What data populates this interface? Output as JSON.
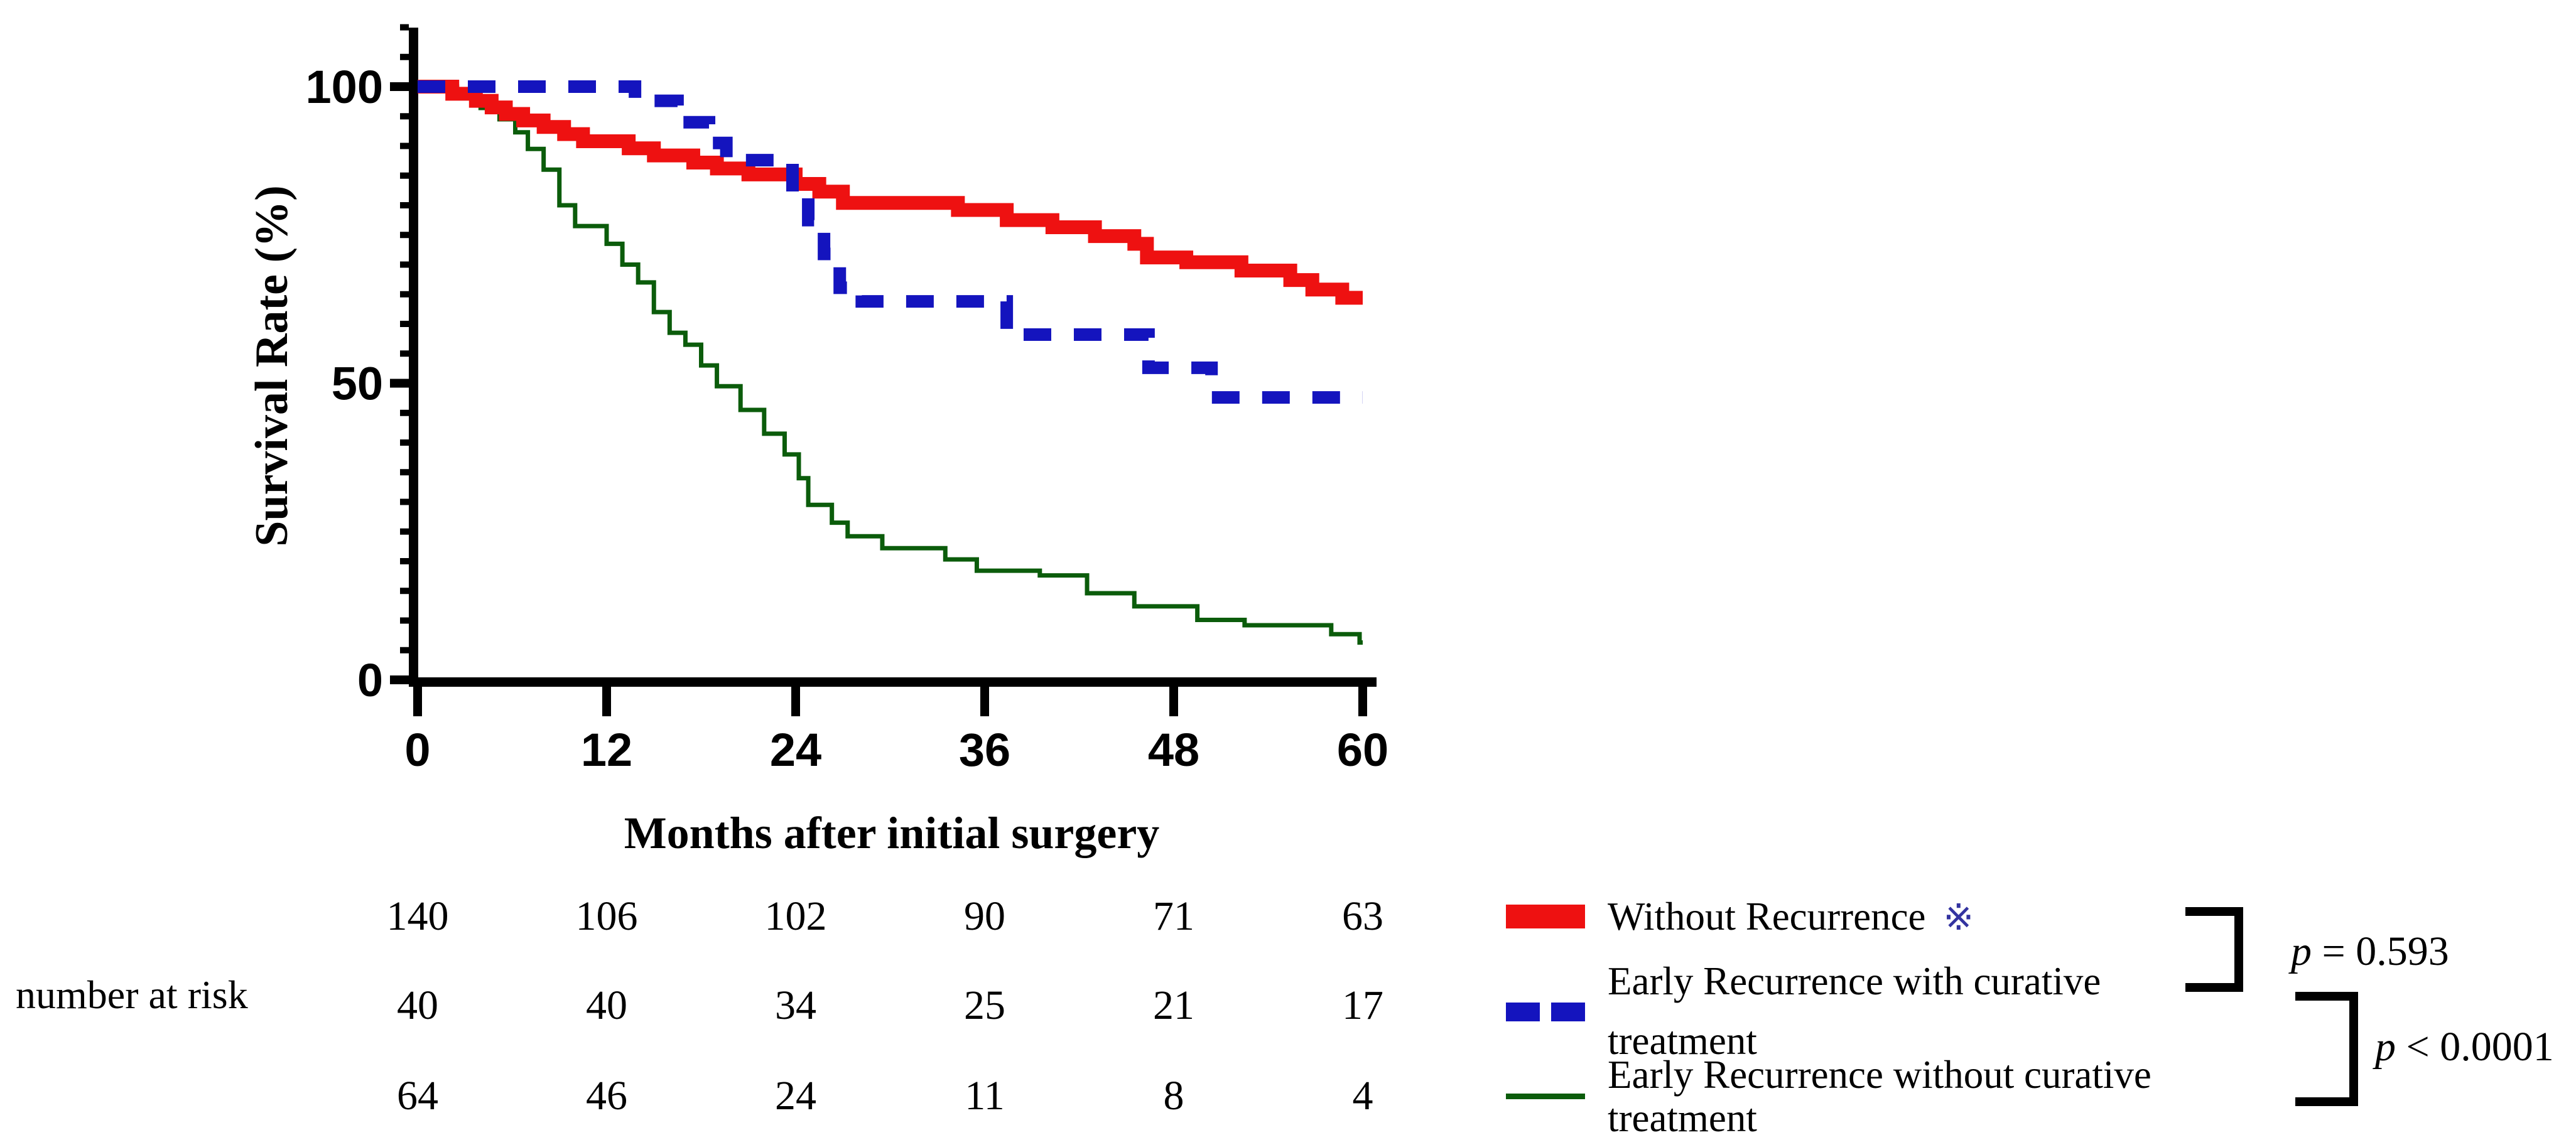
{
  "y_axis": {
    "title": "Survival Rate (%)",
    "tick_labels": [
      "100",
      "50",
      "0"
    ],
    "tick_values": [
      100,
      50,
      0
    ],
    "minor_tick_step": 5,
    "axis_extends_to": 110
  },
  "x_axis": {
    "title": "Months after initial surgery",
    "tick_labels": [
      "0",
      "12",
      "24",
      "36",
      "48",
      "60"
    ],
    "tick_values": [
      0,
      12,
      24,
      36,
      48,
      60
    ]
  },
  "chart_data": {
    "type": "line",
    "subtype": "kaplan-meier-step-curves",
    "title": "",
    "xlabel": "Months after initial surgery",
    "ylabel": "Survival Rate (%)",
    "xlim": [
      0,
      60
    ],
    "ylim": [
      0,
      100
    ],
    "x_ticks": [
      0,
      12,
      24,
      36,
      48,
      60
    ],
    "y_ticks": [
      0,
      50,
      100
    ],
    "grid": false,
    "legend_position": "bottom-right",
    "series": [
      {
        "name": "Without Recurrence",
        "marker_suffix": "※",
        "color": "#ee1111",
        "line_style": "solid",
        "line_width": 22,
        "steps_t_percent": [
          [
            0,
            100
          ],
          [
            2.2,
            98.8
          ],
          [
            3.7,
            97.6
          ],
          [
            4.7,
            96.5
          ],
          [
            5.6,
            95.4
          ],
          [
            6.7,
            94.3
          ],
          [
            8,
            93.2
          ],
          [
            9.3,
            92
          ],
          [
            10.5,
            90.8
          ],
          [
            13.4,
            89.6
          ],
          [
            15,
            88.4
          ],
          [
            17.5,
            87.2
          ],
          [
            19,
            86.2
          ],
          [
            21,
            85.2
          ],
          [
            24,
            83.6
          ],
          [
            25.5,
            82.3
          ],
          [
            27,
            80.4
          ],
          [
            34.3,
            79.2
          ],
          [
            37.4,
            77.5
          ],
          [
            40.3,
            76.3
          ],
          [
            43,
            74.8
          ],
          [
            45.5,
            73.5
          ],
          [
            46.3,
            71.2
          ],
          [
            48.8,
            70.4
          ],
          [
            52.3,
            69
          ],
          [
            55.4,
            67.4
          ],
          [
            56.8,
            65.8
          ],
          [
            58.7,
            64.4
          ]
        ]
      },
      {
        "name": "Early Recurrence with curative treatment",
        "color": "#1414be",
        "line_style": "dashed",
        "line_width": 20,
        "steps_t_percent": [
          [
            0,
            100
          ],
          [
            13.8,
            97.6
          ],
          [
            16.5,
            94
          ],
          [
            18.5,
            90.5
          ],
          [
            19.6,
            87.6
          ],
          [
            23.8,
            82
          ],
          [
            24.8,
            77.5
          ],
          [
            25.8,
            71.8
          ],
          [
            26.8,
            66.1
          ],
          [
            28.2,
            63.8
          ],
          [
            37.4,
            58.2
          ],
          [
            46.4,
            52.6
          ],
          [
            50.4,
            47.6
          ]
        ]
      },
      {
        "name": "Early Recurrence without curative treatment",
        "color": "#0b5c0b",
        "line_style": "solid",
        "line_width": 7,
        "steps_t_percent": [
          [
            0,
            100
          ],
          [
            2.5,
            98.2
          ],
          [
            4,
            96.4
          ],
          [
            5.2,
            94.5
          ],
          [
            6.2,
            92.3
          ],
          [
            7,
            89.5
          ],
          [
            8,
            86
          ],
          [
            9,
            80
          ],
          [
            10,
            76.5
          ],
          [
            12,
            73.5
          ],
          [
            13,
            70
          ],
          [
            14,
            67
          ],
          [
            15,
            62
          ],
          [
            16,
            58.5
          ],
          [
            17,
            56.5
          ],
          [
            18,
            53
          ],
          [
            19,
            49.5
          ],
          [
            20.5,
            45.5
          ],
          [
            22,
            41.5
          ],
          [
            23.3,
            38
          ],
          [
            24.2,
            34
          ],
          [
            24.8,
            29.5
          ],
          [
            26.3,
            26.5
          ],
          [
            27.3,
            24.2
          ],
          [
            29.5,
            22.2
          ],
          [
            33.5,
            20.3
          ],
          [
            35.5,
            18.4
          ],
          [
            39.5,
            17.6
          ],
          [
            42.5,
            14.6
          ],
          [
            45.5,
            12.4
          ],
          [
            49.5,
            10.1
          ],
          [
            52.5,
            9.2
          ],
          [
            58,
            7.7
          ],
          [
            59.8,
            6.3
          ]
        ]
      }
    ]
  },
  "risk_table": {
    "label": "number at risk",
    "timepoints": [
      0,
      12,
      24,
      36,
      48,
      60
    ],
    "rows": [
      {
        "group": "Without Recurrence",
        "values": [
          "140",
          "106",
          "102",
          "90",
          "71",
          "63"
        ]
      },
      {
        "group": "Early Recurrence with curative treatment",
        "values": [
          "40",
          "40",
          "34",
          "25",
          "21",
          "17"
        ]
      },
      {
        "group": "Early Recurrence without curative treatment",
        "values": [
          "64",
          "46",
          "24",
          "11",
          "8",
          "4"
        ]
      }
    ]
  },
  "legend": {
    "items": [
      {
        "lines": [
          "Without Recurrence"
        ],
        "suffix": "※",
        "swatch": "thick-red-solid-line"
      },
      {
        "lines": [
          "Early Recurrence with curative",
          "treatment"
        ],
        "swatch": "blue-dashed-line"
      },
      {
        "lines": [
          "Early Recurrence without curative",
          "treatment"
        ],
        "swatch": "thin-green-solid-line"
      }
    ]
  },
  "stats": [
    {
      "variable": "p",
      "text": " = 0.593"
    },
    {
      "variable": "p",
      "text": " < 0.0001"
    }
  ],
  "colors": {
    "without_recurrence": "#ee1111",
    "early_recurrence_curative": "#1414be",
    "early_recurrence_no_curative": "#0b5c0b",
    "axis": "#000000",
    "background": "#ffffff"
  }
}
